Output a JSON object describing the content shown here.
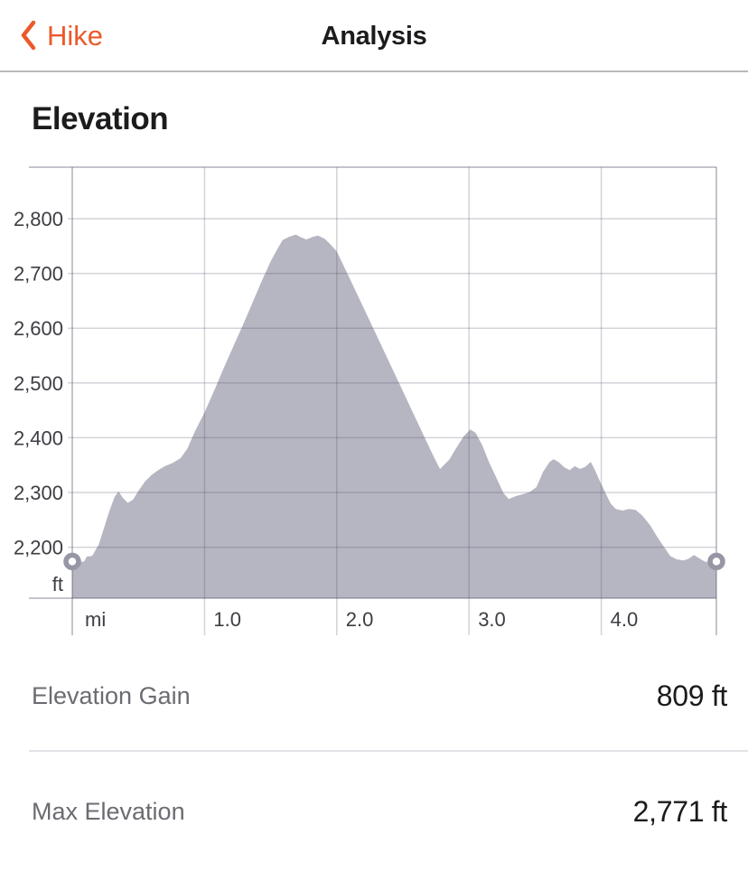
{
  "header": {
    "back_label": "Hike",
    "title": "Analysis"
  },
  "section": {
    "title": "Elevation"
  },
  "stats": [
    {
      "label": "Elevation Gain",
      "value": "809 ft"
    },
    {
      "label": "Max Elevation",
      "value": "2,771 ft"
    }
  ],
  "colors": {
    "accent": "#ea5a2a",
    "area_fill": "#b6b6c2",
    "marker_ring": "#9696a5",
    "axis_text": "#3d3d44",
    "stat_label": "#6b6b72",
    "stat_value": "#1b1b1e"
  },
  "chart_data": {
    "type": "area",
    "title": "Elevation",
    "xlabel": "mi",
    "ylabel": "ft",
    "grid": true,
    "xlim": [
      0,
      4.87
    ],
    "ylim": [
      2107,
      2894
    ],
    "x_ticks": [
      1.0,
      2.0,
      3.0,
      4.0
    ],
    "x_tick_labels": [
      "1.0",
      "2.0",
      "3.0",
      "4.0"
    ],
    "y_ticks": [
      2200,
      2300,
      2400,
      2500,
      2600,
      2700,
      2800
    ],
    "y_tick_labels": [
      "2,200",
      "2,300",
      "2,400",
      "2,500",
      "2,600",
      "2,700",
      "2,800"
    ],
    "elevation_gain_ft": 809,
    "max_elevation_ft": 2771,
    "series": [
      {
        "name": "elevation_profile",
        "points": [
          [
            0.0,
            2174
          ],
          [
            0.05,
            2173
          ],
          [
            0.09,
            2174
          ],
          [
            0.11,
            2183
          ],
          [
            0.15,
            2184
          ],
          [
            0.2,
            2205
          ],
          [
            0.24,
            2235
          ],
          [
            0.28,
            2266
          ],
          [
            0.32,
            2292
          ],
          [
            0.35,
            2302
          ],
          [
            0.38,
            2291
          ],
          [
            0.42,
            2281
          ],
          [
            0.46,
            2287
          ],
          [
            0.5,
            2303
          ],
          [
            0.55,
            2320
          ],
          [
            0.6,
            2332
          ],
          [
            0.65,
            2341
          ],
          [
            0.7,
            2348
          ],
          [
            0.76,
            2354
          ],
          [
            0.82,
            2363
          ],
          [
            0.87,
            2380
          ],
          [
            0.93,
            2413
          ],
          [
            1.0,
            2446
          ],
          [
            1.08,
            2490
          ],
          [
            1.15,
            2530
          ],
          [
            1.22,
            2568
          ],
          [
            1.29,
            2606
          ],
          [
            1.36,
            2645
          ],
          [
            1.43,
            2685
          ],
          [
            1.5,
            2722
          ],
          [
            1.55,
            2744
          ],
          [
            1.59,
            2761
          ],
          [
            1.64,
            2767
          ],
          [
            1.69,
            2771
          ],
          [
            1.73,
            2766
          ],
          [
            1.77,
            2762
          ],
          [
            1.82,
            2767
          ],
          [
            1.86,
            2769
          ],
          [
            1.91,
            2763
          ],
          [
            1.96,
            2751
          ],
          [
            2.0,
            2740
          ],
          [
            2.08,
            2700
          ],
          [
            2.16,
            2659
          ],
          [
            2.24,
            2618
          ],
          [
            2.32,
            2577
          ],
          [
            2.4,
            2536
          ],
          [
            2.48,
            2495
          ],
          [
            2.56,
            2454
          ],
          [
            2.64,
            2413
          ],
          [
            2.72,
            2372
          ],
          [
            2.78,
            2343
          ],
          [
            2.85,
            2360
          ],
          [
            2.9,
            2380
          ],
          [
            2.96,
            2403
          ],
          [
            3.01,
            2415
          ],
          [
            3.05,
            2409
          ],
          [
            3.1,
            2386
          ],
          [
            3.15,
            2356
          ],
          [
            3.21,
            2325
          ],
          [
            3.26,
            2299
          ],
          [
            3.3,
            2288
          ],
          [
            3.35,
            2293
          ],
          [
            3.41,
            2297
          ],
          [
            3.46,
            2301
          ],
          [
            3.51,
            2310
          ],
          [
            3.56,
            2338
          ],
          [
            3.61,
            2356
          ],
          [
            3.64,
            2361
          ],
          [
            3.68,
            2355
          ],
          [
            3.72,
            2346
          ],
          [
            3.76,
            2341
          ],
          [
            3.8,
            2348
          ],
          [
            3.84,
            2343
          ],
          [
            3.88,
            2347
          ],
          [
            3.92,
            2356
          ],
          [
            3.95,
            2342
          ],
          [
            3.99,
            2320
          ],
          [
            4.03,
            2300
          ],
          [
            4.07,
            2280
          ],
          [
            4.11,
            2270
          ],
          [
            4.16,
            2267
          ],
          [
            4.21,
            2270
          ],
          [
            4.26,
            2268
          ],
          [
            4.31,
            2258
          ],
          [
            4.37,
            2240
          ],
          [
            4.42,
            2220
          ],
          [
            4.47,
            2202
          ],
          [
            4.52,
            2184
          ],
          [
            4.57,
            2178
          ],
          [
            4.62,
            2176
          ],
          [
            4.66,
            2179
          ],
          [
            4.7,
            2186
          ],
          [
            4.74,
            2180
          ],
          [
            4.78,
            2174
          ],
          [
            4.83,
            2172
          ],
          [
            4.87,
            2174
          ]
        ]
      }
    ]
  }
}
